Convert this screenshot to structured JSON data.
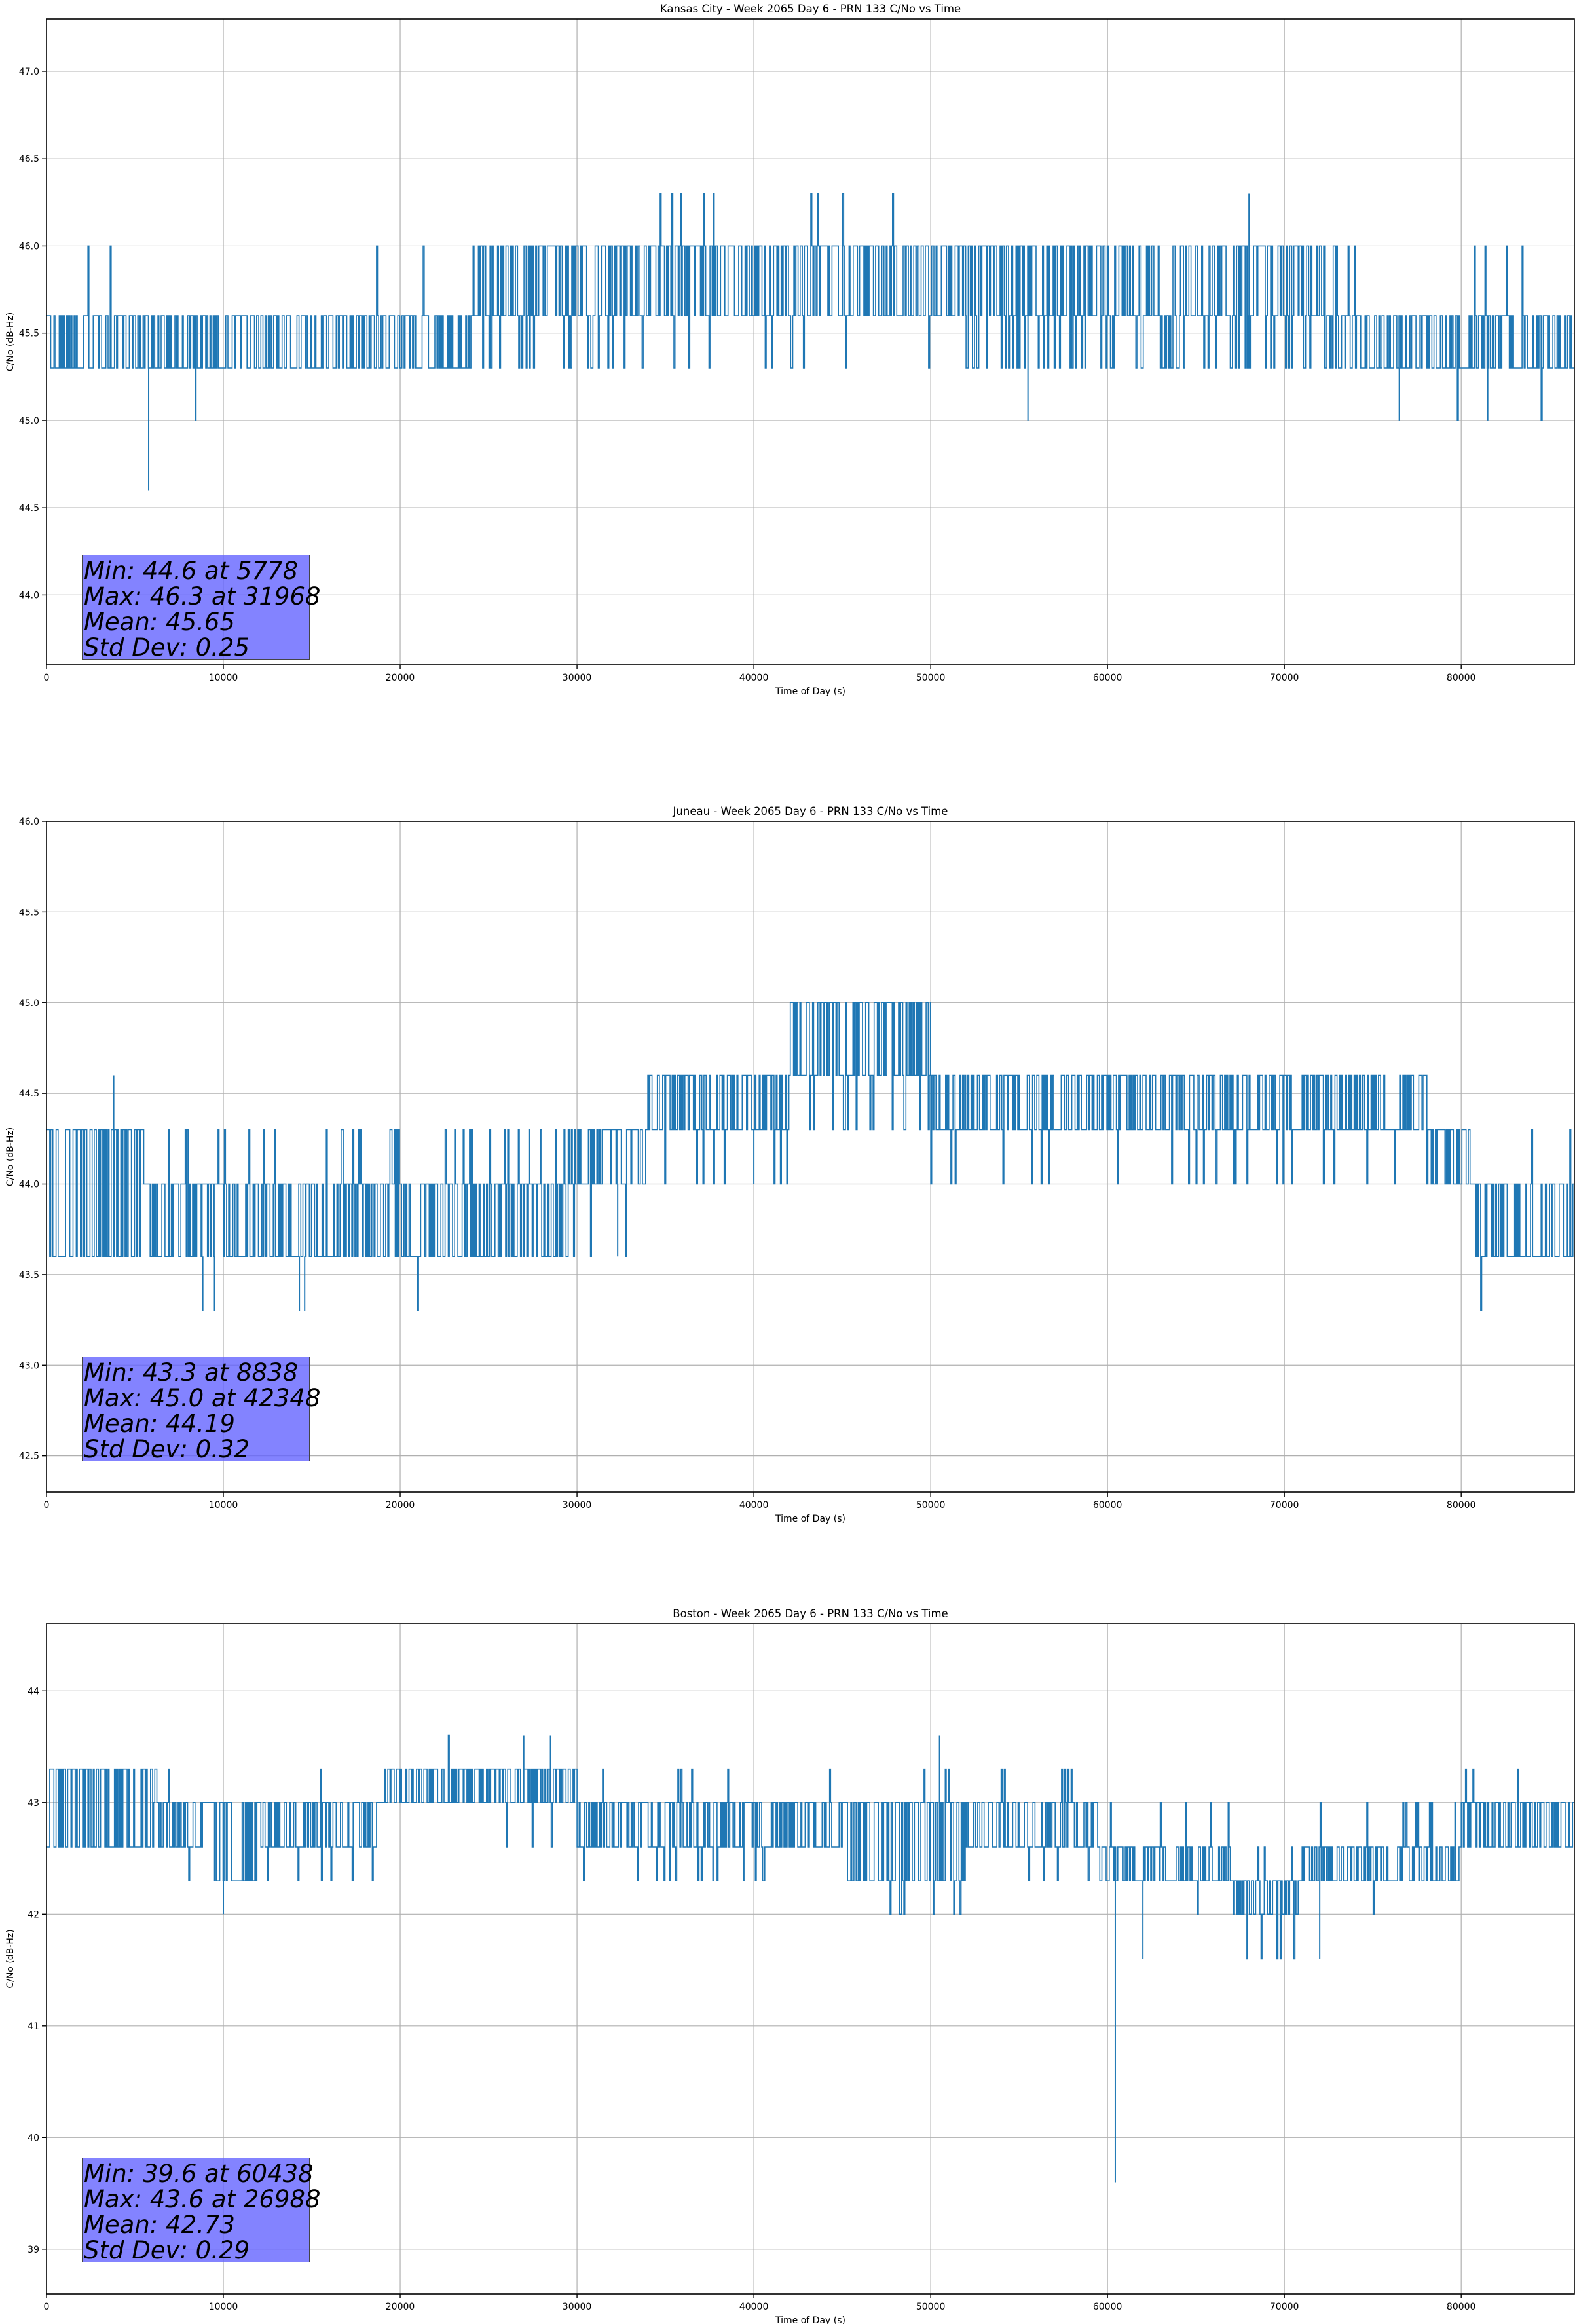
{
  "figure": {
    "colors": {
      "line": "#1f77b4",
      "grid": "#b0b0b0",
      "stats_box": "#6464ff"
    }
  },
  "chart_data": [
    {
      "type": "line",
      "title": "Kansas City - Week 2065 Day 6 - PRN 133 C/No vs Time",
      "xlabel": "Time of Day (s)",
      "ylabel": "C/No (dB-Hz)",
      "xlim": [
        0,
        86400
      ],
      "ylim": [
        43.6,
        47.3
      ],
      "xticks": [
        0,
        10000,
        20000,
        30000,
        40000,
        50000,
        60000,
        70000,
        80000
      ],
      "yticks": [
        44.0,
        44.5,
        45.0,
        45.5,
        46.0,
        46.5,
        47.0
      ],
      "ytick_decimals": 1,
      "grid": true,
      "stats": {
        "min": "Min: 44.6 at 5778",
        "max": "Max: 46.3 at 31968",
        "mean": "Mean: 45.65",
        "std": "Std Dev: 0.25"
      },
      "levels": [
        45.0,
        45.3,
        45.6,
        46.0,
        46.3
      ],
      "segments": [
        {
          "start": 0,
          "end": 24000,
          "low": 45.3,
          "high": 45.6,
          "up": 46.0,
          "upp": 0.015,
          "down": 45.0,
          "downp": 0.006
        },
        {
          "start": 24000,
          "end": 32000,
          "low": 45.6,
          "high": 46.0,
          "up": 46.0,
          "upp": 0.0,
          "down": 45.3,
          "downp": 0.12
        },
        {
          "start": 32000,
          "end": 52000,
          "low": 45.6,
          "high": 46.0,
          "up": 46.3,
          "upp": 0.05,
          "down": 45.3,
          "downp": 0.03
        },
        {
          "start": 52000,
          "end": 73000,
          "low": 45.6,
          "high": 46.0,
          "up": 46.3,
          "upp": 0.002,
          "down": 45.3,
          "downp": 0.15
        },
        {
          "start": 73000,
          "end": 86400,
          "low": 45.3,
          "high": 45.6,
          "up": 46.0,
          "upp": 0.015,
          "down": 45.0,
          "downp": 0.004
        }
      ],
      "spikes": [
        {
          "x": 5778,
          "y": 44.6
        },
        {
          "x": 55500,
          "y": 45.0
        },
        {
          "x": 68000,
          "y": 46.3
        },
        {
          "x": 76500,
          "y": 45.0
        },
        {
          "x": 81500,
          "y": 45.0
        }
      ]
    },
    {
      "type": "line",
      "title": "Juneau - Week 2065 Day 6 - PRN 133 C/No vs Time",
      "xlabel": "Time of Day (s)",
      "ylabel": "C/No (dB-Hz)",
      "xlim": [
        0,
        86400
      ],
      "ylim": [
        42.3,
        46.0
      ],
      "xticks": [
        0,
        10000,
        20000,
        30000,
        40000,
        50000,
        60000,
        70000,
        80000
      ],
      "yticks": [
        42.5,
        43.0,
        43.5,
        44.0,
        44.5,
        45.0,
        45.5,
        46.0
      ],
      "ytick_decimals": 1,
      "grid": true,
      "stats": {
        "min": "Min: 43.3 at 8838",
        "max": "Max: 45.0 at 42348",
        "mean": "Mean: 44.19",
        "std": "Std Dev: 0.32"
      },
      "levels": [
        43.3,
        43.6,
        44.0,
        44.3,
        44.6,
        45.0
      ],
      "segments": [
        {
          "start": 0,
          "end": 5500,
          "low": 43.6,
          "high": 44.3,
          "up": 44.3,
          "upp": 0.0,
          "down": 43.6,
          "downp": 0.0
        },
        {
          "start": 5500,
          "end": 29500,
          "low": 43.6,
          "high": 44.0,
          "up": 44.3,
          "upp": 0.08,
          "down": 43.3,
          "downp": 0.003
        },
        {
          "start": 29500,
          "end": 34000,
          "low": 44.0,
          "high": 44.3,
          "up": 44.3,
          "upp": 0.0,
          "down": 43.6,
          "downp": 0.03
        },
        {
          "start": 34000,
          "end": 42000,
          "low": 44.3,
          "high": 44.6,
          "up": 45.0,
          "upp": 0.0,
          "down": 44.0,
          "downp": 0.05
        },
        {
          "start": 42000,
          "end": 50000,
          "low": 44.6,
          "high": 45.0,
          "up": 45.0,
          "upp": 0.0,
          "down": 44.3,
          "downp": 0.1
        },
        {
          "start": 50000,
          "end": 78000,
          "low": 44.3,
          "high": 44.6,
          "up": 45.0,
          "upp": 0.004,
          "down": 44.0,
          "downp": 0.04
        },
        {
          "start": 78000,
          "end": 80500,
          "low": 44.0,
          "high": 44.3,
          "up": 44.6,
          "upp": 0.02,
          "down": 43.6,
          "downp": 0.0
        },
        {
          "start": 80500,
          "end": 86400,
          "low": 43.6,
          "high": 44.0,
          "up": 44.3,
          "upp": 0.02,
          "down": 43.3,
          "downp": 0.01
        }
      ],
      "spikes": [
        {
          "x": 3800,
          "y": 44.6
        },
        {
          "x": 8838,
          "y": 43.3
        },
        {
          "x": 9500,
          "y": 43.3
        },
        {
          "x": 14300,
          "y": 43.3
        },
        {
          "x": 14600,
          "y": 43.3
        },
        {
          "x": 32300,
          "y": 43.6
        },
        {
          "x": 40000,
          "y": 44.0
        }
      ]
    },
    {
      "type": "line",
      "title": "Boston - Week 2065 Day 6 - PRN 133 C/No vs Time",
      "xlabel": "Time of Day (s)",
      "ylabel": "C/No (dB-Hz)",
      "xlim": [
        0,
        86400
      ],
      "ylim": [
        38.6,
        44.6
      ],
      "xticks": [
        0,
        10000,
        20000,
        30000,
        40000,
        50000,
        60000,
        70000,
        80000
      ],
      "yticks": [
        39,
        40,
        41,
        42,
        43,
        44
      ],
      "ytick_decimals": 0,
      "grid": true,
      "stats": {
        "min": "Min: 39.6 at 60438",
        "max": "Max: 43.6 at 26988",
        "mean": "Mean: 42.73",
        "std": "Std Dev: 0.29"
      },
      "levels": [
        41.6,
        42.0,
        42.3,
        42.6,
        43.0,
        43.3,
        43.6
      ],
      "segments": [
        {
          "start": 0,
          "end": 6000,
          "low": 42.6,
          "high": 43.3,
          "up": 43.3,
          "upp": 0.0,
          "down": 42.6,
          "downp": 0.0
        },
        {
          "start": 6000,
          "end": 9500,
          "low": 42.6,
          "high": 43.0,
          "up": 43.3,
          "upp": 0.03,
          "down": 42.3,
          "downp": 0.02
        },
        {
          "start": 9500,
          "end": 12000,
          "low": 42.3,
          "high": 43.0,
          "up": 43.0,
          "upp": 0.0,
          "down": 42.3,
          "downp": 0.0
        },
        {
          "start": 12000,
          "end": 19000,
          "low": 42.6,
          "high": 43.0,
          "up": 43.3,
          "upp": 0.02,
          "down": 42.3,
          "downp": 0.1
        },
        {
          "start": 19000,
          "end": 30000,
          "low": 43.0,
          "high": 43.3,
          "up": 43.6,
          "upp": 0.01,
          "down": 42.6,
          "downp": 0.02
        },
        {
          "start": 30000,
          "end": 45000,
          "low": 42.6,
          "high": 43.0,
          "up": 43.3,
          "upp": 0.04,
          "down": 42.3,
          "downp": 0.03
        },
        {
          "start": 45000,
          "end": 52000,
          "low": 42.3,
          "high": 43.0,
          "up": 43.3,
          "upp": 0.02,
          "down": 42.0,
          "downp": 0.02
        },
        {
          "start": 52000,
          "end": 59500,
          "low": 42.6,
          "high": 43.0,
          "up": 43.3,
          "upp": 0.03,
          "down": 42.3,
          "downp": 0.03
        },
        {
          "start": 59500,
          "end": 67000,
          "low": 42.3,
          "high": 42.6,
          "up": 43.0,
          "upp": 0.05,
          "down": 42.0,
          "downp": 0.03
        },
        {
          "start": 67000,
          "end": 71000,
          "low": 42.0,
          "high": 42.3,
          "up": 42.6,
          "upp": 0.05,
          "down": 41.6,
          "downp": 0.1
        },
        {
          "start": 71000,
          "end": 80000,
          "low": 42.3,
          "high": 42.6,
          "up": 43.0,
          "upp": 0.03,
          "down": 42.0,
          "downp": 0.01
        },
        {
          "start": 80000,
          "end": 86400,
          "low": 42.6,
          "high": 43.0,
          "up": 43.3,
          "upp": 0.05,
          "down": 42.3,
          "downp": 0.0
        }
      ],
      "spikes": [
        {
          "x": 10000,
          "y": 42.0
        },
        {
          "x": 26988,
          "y": 43.6
        },
        {
          "x": 28500,
          "y": 43.6
        },
        {
          "x": 50500,
          "y": 43.6
        },
        {
          "x": 60438,
          "y": 39.6
        },
        {
          "x": 62000,
          "y": 41.6
        },
        {
          "x": 72000,
          "y": 41.6
        }
      ]
    }
  ]
}
